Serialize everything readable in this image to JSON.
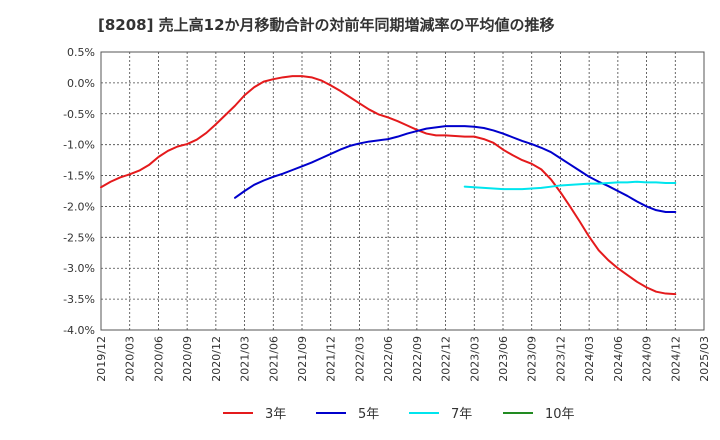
{
  "chart_data": {
    "type": "line",
    "title": "[8208]  売上高12か月移動合計の対前年同期増減率の平均値の推移",
    "xlabel": "",
    "ylabel": "",
    "ylim": [
      -4.0,
      0.5
    ],
    "y_ticks": [
      "0.5%",
      "0.0%",
      "-0.5%",
      "-1.0%",
      "-1.5%",
      "-2.0%",
      "-2.5%",
      "-3.0%",
      "-3.5%",
      "-4.0%"
    ],
    "x_ticks": [
      "2019/12",
      "2020/03",
      "2020/06",
      "2020/09",
      "2020/12",
      "2021/03",
      "2021/06",
      "2021/09",
      "2021/12",
      "2022/03",
      "2022/06",
      "2022/09",
      "2022/12",
      "2023/03",
      "2023/06",
      "2023/09",
      "2023/12",
      "2024/03",
      "2024/06",
      "2024/09",
      "2024/12",
      "2025/03"
    ],
    "grid": true,
    "legend_position": "bottom",
    "series": [
      {
        "name": "3年",
        "color": "#e41a1c",
        "points": [
          [
            "2019/12",
            -1.69
          ],
          [
            "2020/01",
            -1.6
          ],
          [
            "2020/02",
            -1.53
          ],
          [
            "2020/03",
            -1.48
          ],
          [
            "2020/04",
            -1.42
          ],
          [
            "2020/05",
            -1.33
          ],
          [
            "2020/06",
            -1.2
          ],
          [
            "2020/07",
            -1.1
          ],
          [
            "2020/08",
            -1.03
          ],
          [
            "2020/09",
            -0.99
          ],
          [
            "2020/10",
            -0.92
          ],
          [
            "2020/11",
            -0.81
          ],
          [
            "2020/12",
            -0.67
          ],
          [
            "2021/01",
            -0.52
          ],
          [
            "2021/02",
            -0.37
          ],
          [
            "2021/03",
            -0.2
          ],
          [
            "2021/04",
            -0.07
          ],
          [
            "2021/05",
            0.02
          ],
          [
            "2021/06",
            0.06
          ],
          [
            "2021/07",
            0.09
          ],
          [
            "2021/08",
            0.11
          ],
          [
            "2021/09",
            0.11
          ],
          [
            "2021/10",
            0.09
          ],
          [
            "2021/11",
            0.04
          ],
          [
            "2021/12",
            -0.04
          ],
          [
            "2022/01",
            -0.13
          ],
          [
            "2022/02",
            -0.23
          ],
          [
            "2022/03",
            -0.33
          ],
          [
            "2022/04",
            -0.43
          ],
          [
            "2022/05",
            -0.51
          ],
          [
            "2022/06",
            -0.56
          ],
          [
            "2022/07",
            -0.62
          ],
          [
            "2022/08",
            -0.69
          ],
          [
            "2022/09",
            -0.76
          ],
          [
            "2022/10",
            -0.82
          ],
          [
            "2022/11",
            -0.85
          ],
          [
            "2022/12",
            -0.85
          ],
          [
            "2023/01",
            -0.86
          ],
          [
            "2023/02",
            -0.87
          ],
          [
            "2023/03",
            -0.87
          ],
          [
            "2023/04",
            -0.91
          ],
          [
            "2023/05",
            -0.97
          ],
          [
            "2023/06",
            -1.08
          ],
          [
            "2023/07",
            -1.17
          ],
          [
            "2023/08",
            -1.25
          ],
          [
            "2023/09",
            -1.31
          ],
          [
            "2023/10",
            -1.4
          ],
          [
            "2023/11",
            -1.56
          ],
          [
            "2023/12",
            -1.77
          ],
          [
            "2024/01",
            -2.0
          ],
          [
            "2024/02",
            -2.24
          ],
          [
            "2024/03",
            -2.49
          ],
          [
            "2024/04",
            -2.71
          ],
          [
            "2024/05",
            -2.87
          ],
          [
            "2024/06",
            -3.0
          ],
          [
            "2024/07",
            -3.11
          ],
          [
            "2024/08",
            -3.22
          ],
          [
            "2024/09",
            -3.31
          ],
          [
            "2024/10",
            -3.38
          ],
          [
            "2024/11",
            -3.41
          ],
          [
            "2024/12",
            -3.42
          ]
        ]
      },
      {
        "name": "5年",
        "color": "#0000cc",
        "points": [
          [
            "2021/02",
            -1.86
          ],
          [
            "2021/03",
            -1.75
          ],
          [
            "2021/04",
            -1.65
          ],
          [
            "2021/05",
            -1.58
          ],
          [
            "2021/06",
            -1.52
          ],
          [
            "2021/07",
            -1.47
          ],
          [
            "2021/08",
            -1.41
          ],
          [
            "2021/09",
            -1.35
          ],
          [
            "2021/10",
            -1.29
          ],
          [
            "2021/11",
            -1.22
          ],
          [
            "2021/12",
            -1.15
          ],
          [
            "2022/01",
            -1.08
          ],
          [
            "2022/02",
            -1.02
          ],
          [
            "2022/03",
            -0.98
          ],
          [
            "2022/04",
            -0.95
          ],
          [
            "2022/05",
            -0.93
          ],
          [
            "2022/06",
            -0.91
          ],
          [
            "2022/07",
            -0.87
          ],
          [
            "2022/08",
            -0.82
          ],
          [
            "2022/09",
            -0.78
          ],
          [
            "2022/10",
            -0.74
          ],
          [
            "2022/11",
            -0.72
          ],
          [
            "2022/12",
            -0.7
          ],
          [
            "2023/01",
            -0.7
          ],
          [
            "2023/02",
            -0.7
          ],
          [
            "2023/03",
            -0.71
          ],
          [
            "2023/04",
            -0.73
          ],
          [
            "2023/05",
            -0.77
          ],
          [
            "2023/06",
            -0.82
          ],
          [
            "2023/07",
            -0.88
          ],
          [
            "2023/08",
            -0.94
          ],
          [
            "2023/09",
            -0.99
          ],
          [
            "2023/10",
            -1.05
          ],
          [
            "2023/11",
            -1.12
          ],
          [
            "2023/12",
            -1.22
          ],
          [
            "2024/01",
            -1.32
          ],
          [
            "2024/02",
            -1.42
          ],
          [
            "2024/03",
            -1.52
          ],
          [
            "2024/04",
            -1.6
          ],
          [
            "2024/05",
            -1.67
          ],
          [
            "2024/06",
            -1.75
          ],
          [
            "2024/07",
            -1.83
          ],
          [
            "2024/08",
            -1.92
          ],
          [
            "2024/09",
            -2.0
          ],
          [
            "2024/10",
            -2.06
          ],
          [
            "2024/11",
            -2.09
          ],
          [
            "2024/12",
            -2.09
          ]
        ]
      },
      {
        "name": "7年",
        "color": "#00e5ee",
        "points": [
          [
            "2023/02",
            -1.68
          ],
          [
            "2023/03",
            -1.69
          ],
          [
            "2023/04",
            -1.7
          ],
          [
            "2023/05",
            -1.71
          ],
          [
            "2023/06",
            -1.72
          ],
          [
            "2023/07",
            -1.72
          ],
          [
            "2023/08",
            -1.72
          ],
          [
            "2023/09",
            -1.71
          ],
          [
            "2023/10",
            -1.7
          ],
          [
            "2023/11",
            -1.68
          ],
          [
            "2023/12",
            -1.66
          ],
          [
            "2024/01",
            -1.65
          ],
          [
            "2024/02",
            -1.64
          ],
          [
            "2024/03",
            -1.63
          ],
          [
            "2024/04",
            -1.63
          ],
          [
            "2024/05",
            -1.62
          ],
          [
            "2024/06",
            -1.61
          ],
          [
            "2024/07",
            -1.61
          ],
          [
            "2024/08",
            -1.6
          ],
          [
            "2024/09",
            -1.61
          ],
          [
            "2024/10",
            -1.61
          ],
          [
            "2024/11",
            -1.62
          ],
          [
            "2024/12",
            -1.62
          ]
        ]
      },
      {
        "name": "10年",
        "color": "#228b22",
        "points": []
      }
    ]
  }
}
